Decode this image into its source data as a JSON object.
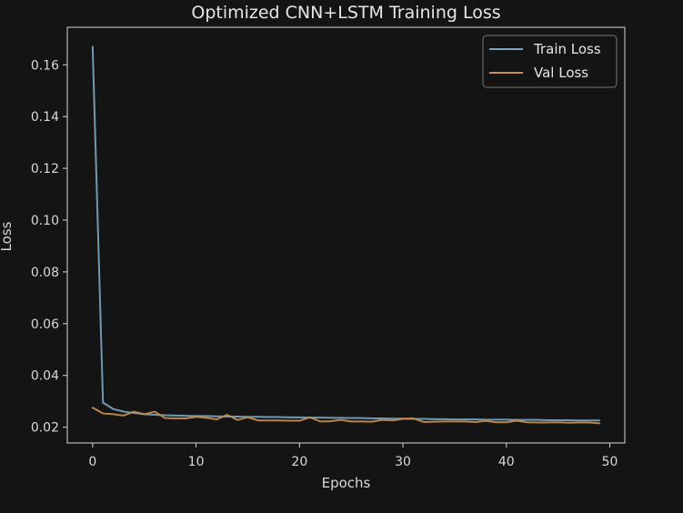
{
  "chart_data": {
    "type": "line",
    "title": "Optimized CNN+LSTM Training Loss",
    "xlabel": "Epochs",
    "ylabel": "Loss",
    "xlim": [
      -2.45,
      51.45
    ],
    "ylim": [
      0.0139,
      0.1745
    ],
    "xticks": [
      0,
      10,
      20,
      30,
      40,
      50
    ],
    "xtick_labels": [
      "0",
      "10",
      "20",
      "30",
      "40",
      "50"
    ],
    "yticks": [
      0.02,
      0.04,
      0.06,
      0.08,
      0.1,
      0.12,
      0.14,
      0.16
    ],
    "ytick_labels": [
      "0.02",
      "0.04",
      "0.06",
      "0.08",
      "0.10",
      "0.12",
      "0.14",
      "0.16"
    ],
    "grid": false,
    "legend_position": "top-right",
    "x": [
      0,
      1,
      2,
      3,
      4,
      5,
      6,
      7,
      8,
      9,
      10,
      11,
      12,
      13,
      14,
      15,
      16,
      17,
      18,
      19,
      20,
      21,
      22,
      23,
      24,
      25,
      26,
      27,
      28,
      29,
      30,
      31,
      32,
      33,
      34,
      35,
      36,
      37,
      38,
      39,
      40,
      41,
      42,
      43,
      44,
      45,
      46,
      47,
      48,
      49
    ],
    "series": [
      {
        "name": "Train Loss",
        "color": "#7aa6c2",
        "values": [
          0.167,
          0.0295,
          0.027,
          0.026,
          0.0255,
          0.025,
          0.0248,
          0.0246,
          0.0245,
          0.0244,
          0.0243,
          0.0243,
          0.0242,
          0.0241,
          0.0241,
          0.024,
          0.024,
          0.0239,
          0.0239,
          0.0238,
          0.0238,
          0.0237,
          0.0237,
          0.0236,
          0.0236,
          0.0235,
          0.0235,
          0.0234,
          0.0234,
          0.0233,
          0.0233,
          0.0232,
          0.0232,
          0.0231,
          0.0231,
          0.023,
          0.023,
          0.023,
          0.0229,
          0.0229,
          0.0229,
          0.0228,
          0.0228,
          0.0228,
          0.0227,
          0.0227,
          0.0227,
          0.0226,
          0.0226,
          0.0226
        ]
      },
      {
        "name": "Val Loss",
        "color": "#c98f4e",
        "values": [
          0.0275,
          0.0253,
          0.025,
          0.0245,
          0.026,
          0.025,
          0.026,
          0.0235,
          0.0234,
          0.0234,
          0.024,
          0.0236,
          0.023,
          0.0248,
          0.0228,
          0.0238,
          0.0226,
          0.0226,
          0.0226,
          0.0225,
          0.0225,
          0.0238,
          0.0222,
          0.0223,
          0.0228,
          0.0222,
          0.0222,
          0.0221,
          0.0228,
          0.0226,
          0.0232,
          0.0234,
          0.022,
          0.0221,
          0.0222,
          0.0222,
          0.0222,
          0.022,
          0.0224,
          0.0219,
          0.0219,
          0.0225,
          0.0219,
          0.0218,
          0.0218,
          0.0219,
          0.0217,
          0.0218,
          0.0218,
          0.0215
        ]
      }
    ]
  }
}
